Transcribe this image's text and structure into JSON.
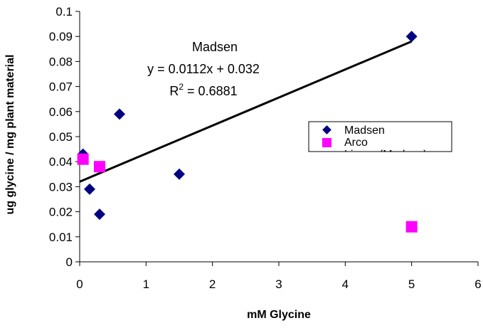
{
  "chart_data": {
    "type": "scatter",
    "title": "",
    "xlabel": "mM Glycine",
    "ylabel": "ug glycine / mg plant material",
    "xlim": [
      0,
      6
    ],
    "ylim": [
      0,
      0.1
    ],
    "x_ticks": [
      0,
      1,
      2,
      3,
      4,
      5,
      6
    ],
    "y_ticks": [
      0,
      0.01,
      0.02,
      0.03,
      0.04,
      0.05,
      0.06,
      0.07,
      0.08,
      0.09,
      0.1
    ],
    "x_tick_labels": [
      "0",
      "1",
      "2",
      "3",
      "4",
      "5",
      "6"
    ],
    "y_tick_labels": [
      "0",
      "0.01",
      "0.02",
      "0.03",
      "0.04",
      "0.05",
      "0.06",
      "0.07",
      "0.08",
      "0.09",
      "0.1"
    ],
    "grid": false,
    "legend_position": "right",
    "series": [
      {
        "name": "Madsen",
        "marker": "diamond",
        "color": "#000080",
        "points": [
          {
            "x": 0.05,
            "y": 0.043
          },
          {
            "x": 0.15,
            "y": 0.029
          },
          {
            "x": 0.3,
            "y": 0.019
          },
          {
            "x": 0.6,
            "y": 0.059
          },
          {
            "x": 1.5,
            "y": 0.035
          },
          {
            "x": 5,
            "y": 0.09
          }
        ]
      },
      {
        "name": "Arco",
        "marker": "square",
        "color": "#ff00ff",
        "points": [
          {
            "x": 0.05,
            "y": 0.041
          },
          {
            "x": 0.3,
            "y": 0.038
          },
          {
            "x": 5,
            "y": 0.014
          }
        ]
      }
    ],
    "trendline": {
      "name": "Linear (Madsen)",
      "slope": 0.0112,
      "intercept": 0.032,
      "x_range": [
        0,
        5
      ],
      "color": "#000000"
    },
    "annotation": {
      "title": "Madsen",
      "equation": "y = 0.0112x + 0.032",
      "r2_prefix": "R",
      "r2_sup": "2",
      "r2_value": " = 0.6881"
    },
    "legend": {
      "entries": [
        "Madsen",
        "Arco",
        "Linear (Madsen)"
      ]
    }
  }
}
